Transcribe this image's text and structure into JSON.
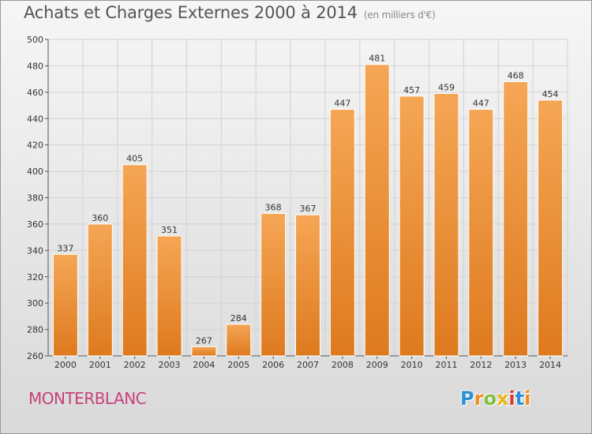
{
  "title": "Achats et Charges Externes 2000 à 2014",
  "subtitle": "(en milliers d'€)",
  "commune": "MONTERBLANC",
  "logo": {
    "text": "Proxiti",
    "colors": [
      "#2b8fd6",
      "#f08a1c",
      "#7fbf3a",
      "#e8b514",
      "#d9392b",
      "#2b8fd6",
      "#f08a1c"
    ]
  },
  "colors": {
    "bar_top": "#f5a655",
    "bar_bottom": "#de7a1e",
    "commune": "#c8407a"
  },
  "chart_data": {
    "type": "bar",
    "title": "Achats et Charges Externes 2000 à 2014",
    "subtitle": "(en milliers d'€)",
    "categories": [
      "2000",
      "2001",
      "2002",
      "2003",
      "2004",
      "2005",
      "2006",
      "2007",
      "2008",
      "2009",
      "2010",
      "2011",
      "2012",
      "2013",
      "2014"
    ],
    "values": [
      337,
      360,
      405,
      351,
      267,
      284,
      368,
      367,
      447,
      481,
      457,
      459,
      447,
      468,
      454
    ],
    "ylim": [
      260,
      500
    ],
    "yticks": [
      260,
      280,
      300,
      320,
      340,
      360,
      380,
      400,
      420,
      440,
      460,
      480,
      500
    ],
    "grid": true,
    "xlabel": "",
    "ylabel": ""
  }
}
